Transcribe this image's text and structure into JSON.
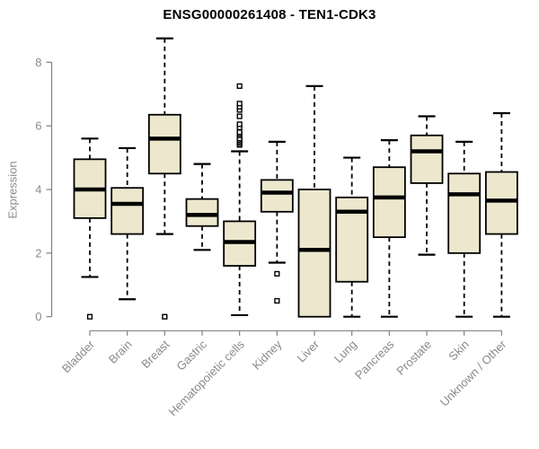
{
  "title": "ENSG00000261408 - TEN1-CDK3",
  "chart_data": {
    "type": "boxplot",
    "title": "ENSG00000261408 - TEN1-CDK3",
    "xlabel": "",
    "ylabel": "Expression",
    "ylim": [
      0,
      8.8
    ],
    "yticks": [
      0,
      2,
      4,
      6,
      8
    ],
    "grid": false,
    "legend": null,
    "categories": [
      "Bladder",
      "Brain",
      "Breast",
      "Gastric",
      "Hematopoietic cells",
      "Kidney",
      "Liver",
      "Lung",
      "Pancreas",
      "Prostate",
      "Skin",
      "Unknown / Other"
    ],
    "series": [
      {
        "category": "Bladder",
        "whisker_low": 1.25,
        "q1": 3.1,
        "median": 4.0,
        "q3": 4.95,
        "whisker_high": 5.6,
        "outliers": [
          0
        ]
      },
      {
        "category": "Brain",
        "whisker_low": 0.55,
        "q1": 2.6,
        "median": 3.55,
        "q3": 4.05,
        "whisker_high": 5.3,
        "outliers": []
      },
      {
        "category": "Breast",
        "whisker_low": 2.6,
        "q1": 4.5,
        "median": 5.6,
        "q3": 6.35,
        "whisker_high": 8.75,
        "outliers": [
          0
        ]
      },
      {
        "category": "Gastric",
        "whisker_low": 2.1,
        "q1": 2.85,
        "median": 3.2,
        "q3": 3.7,
        "whisker_high": 4.8,
        "outliers": []
      },
      {
        "category": "Hematopoietic cells",
        "whisker_low": 0.05,
        "q1": 1.6,
        "median": 2.35,
        "q3": 3.0,
        "whisker_high": 5.2,
        "outliers": [
          5.4,
          5.45,
          5.5,
          5.55,
          5.6,
          5.7,
          5.75,
          5.8,
          5.95,
          6.05,
          6.3,
          6.5,
          6.6,
          6.7,
          7.25
        ]
      },
      {
        "category": "Kidney",
        "whisker_low": 1.7,
        "q1": 3.3,
        "median": 3.9,
        "q3": 4.3,
        "whisker_high": 5.5,
        "outliers": [
          1.35,
          0.5
        ]
      },
      {
        "category": "Liver",
        "whisker_low": 0.0,
        "q1": 0.0,
        "median": 2.1,
        "q3": 4.0,
        "whisker_high": 7.25,
        "outliers": []
      },
      {
        "category": "Lung",
        "whisker_low": 0.0,
        "q1": 1.1,
        "median": 3.3,
        "q3": 3.75,
        "whisker_high": 5.0,
        "outliers": []
      },
      {
        "category": "Pancreas",
        "whisker_low": 0.0,
        "q1": 2.5,
        "median": 3.75,
        "q3": 4.7,
        "whisker_high": 5.55,
        "outliers": []
      },
      {
        "category": "Prostate",
        "whisker_low": 1.95,
        "q1": 4.2,
        "median": 5.2,
        "q3": 5.7,
        "whisker_high": 6.3,
        "outliers": []
      },
      {
        "category": "Skin",
        "whisker_low": 0.0,
        "q1": 2.0,
        "median": 3.85,
        "q3": 4.5,
        "whisker_high": 5.5,
        "outliers": []
      },
      {
        "category": "Unknown / Other",
        "whisker_low": 0.0,
        "q1": 2.6,
        "median": 3.65,
        "q3": 4.55,
        "whisker_high": 6.4,
        "outliers": []
      }
    ],
    "colors": {
      "box_fill": "#EDE8CD",
      "box_stroke": "#000000",
      "median": "#000000",
      "whisker": "#000000",
      "axis": "#808080",
      "tick_label": "#8a8a8a",
      "title": "#000000",
      "outlier_fill": "#ffffff",
      "outlier_stroke": "#000000",
      "background": "#ffffff"
    }
  }
}
